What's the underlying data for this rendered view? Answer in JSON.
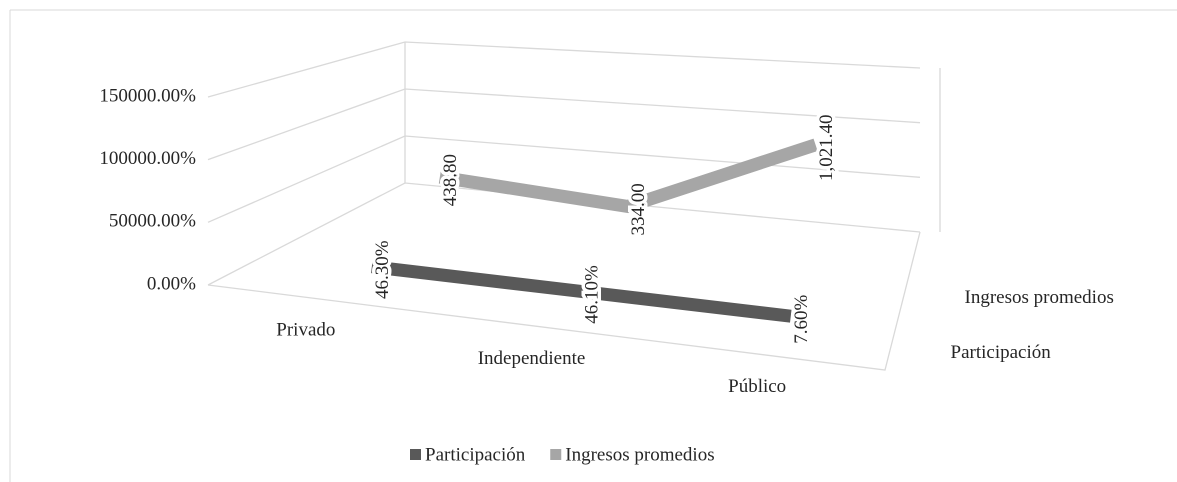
{
  "chart_data": {
    "type": "line3d",
    "categories": [
      "Privado",
      "Independiente",
      "Público"
    ],
    "series": [
      {
        "name": "Participación",
        "color": "#595959",
        "values": [
          46.3,
          46.1,
          7.6
        ],
        "value_labels": [
          "46.30%",
          "46.10%",
          "7.60%"
        ]
      },
      {
        "name": "Ingresos promedios",
        "color": "#a6a6a6",
        "values": [
          43880,
          33400,
          102140
        ],
        "value_labels": [
          "438.80",
          "334.00",
          "1,021.40"
        ]
      }
    ],
    "ylim": [
      0,
      150000
    ],
    "yticks": [
      {
        "value": 0,
        "label": "0.00%"
      },
      {
        "value": 50000,
        "label": "50000.00%"
      },
      {
        "value": 100000,
        "label": "100000.00%"
      },
      {
        "value": 150000,
        "label": "150000.00%"
      }
    ],
    "grid": true,
    "legend": "bottom"
  }
}
